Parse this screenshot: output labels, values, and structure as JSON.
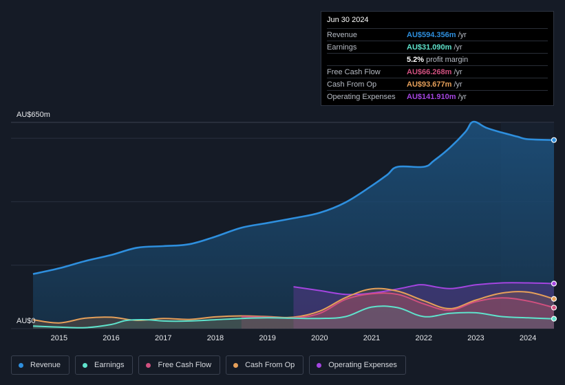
{
  "chart_data": {
    "type": "area",
    "y_axis": {
      "top_label": "AU$650m",
      "bottom_label": "AU$0",
      "ylim": [
        0,
        650
      ]
    },
    "x_ticks": [
      "2015",
      "2016",
      "2017",
      "2018",
      "2019",
      "2020",
      "2021",
      "2022",
      "2023",
      "2024"
    ],
    "series": [
      {
        "name": "Revenue",
        "color": "#2e8fde",
        "points": [
          [
            2014.5,
            172
          ],
          [
            2015.0,
            190
          ],
          [
            2015.5,
            213
          ],
          [
            2016.0,
            232
          ],
          [
            2016.5,
            255
          ],
          [
            2017.0,
            260
          ],
          [
            2017.5,
            266
          ],
          [
            2018.0,
            290
          ],
          [
            2018.5,
            318
          ],
          [
            2019.0,
            333
          ],
          [
            2019.5,
            348
          ],
          [
            2020.0,
            365
          ],
          [
            2020.5,
            398
          ],
          [
            2021.0,
            450
          ],
          [
            2021.3,
            485
          ],
          [
            2021.5,
            510
          ],
          [
            2022.0,
            510
          ],
          [
            2022.2,
            530
          ],
          [
            2022.5,
            570
          ],
          [
            2022.8,
            620
          ],
          [
            2022.95,
            652
          ],
          [
            2023.2,
            633
          ],
          [
            2023.5,
            618
          ],
          [
            2023.8,
            605
          ],
          [
            2024.0,
            597
          ],
          [
            2024.5,
            594.356
          ]
        ]
      },
      {
        "name": "Earnings",
        "color": "#5fe3cc",
        "points": [
          [
            2014.5,
            8
          ],
          [
            2015.0,
            5
          ],
          [
            2015.5,
            3
          ],
          [
            2016.0,
            13
          ],
          [
            2016.3,
            26
          ],
          [
            2016.7,
            28
          ],
          [
            2017.0,
            24
          ],
          [
            2017.5,
            24
          ],
          [
            2018.0,
            28
          ],
          [
            2018.5,
            32
          ],
          [
            2019.0,
            34
          ],
          [
            2019.5,
            33
          ],
          [
            2020.0,
            32
          ],
          [
            2020.5,
            38
          ],
          [
            2021.0,
            68
          ],
          [
            2021.5,
            66
          ],
          [
            2022.0,
            38
          ],
          [
            2022.5,
            48
          ],
          [
            2023.0,
            50
          ],
          [
            2023.5,
            38
          ],
          [
            2024.0,
            34
          ],
          [
            2024.5,
            31.09
          ]
        ]
      },
      {
        "name": "Free Cash Flow",
        "color": "#d1507f",
        "points": [
          [
            2018.5,
            38
          ],
          [
            2019.0,
            36
          ],
          [
            2019.5,
            34
          ],
          [
            2020.0,
            48
          ],
          [
            2020.5,
            92
          ],
          [
            2021.0,
            110
          ],
          [
            2021.5,
            108
          ],
          [
            2022.0,
            78
          ],
          [
            2022.5,
            58
          ],
          [
            2023.0,
            85
          ],
          [
            2023.5,
            97
          ],
          [
            2024.0,
            87
          ],
          [
            2024.5,
            66.268
          ]
        ]
      },
      {
        "name": "Cash From Op",
        "color": "#e6a05a",
        "points": [
          [
            2014.5,
            28
          ],
          [
            2015.0,
            18
          ],
          [
            2015.5,
            33
          ],
          [
            2016.0,
            36
          ],
          [
            2016.5,
            26
          ],
          [
            2017.0,
            32
          ],
          [
            2017.5,
            29
          ],
          [
            2018.0,
            37
          ],
          [
            2018.5,
            40
          ],
          [
            2019.0,
            38
          ],
          [
            2019.5,
            36
          ],
          [
            2020.0,
            55
          ],
          [
            2020.5,
            98
          ],
          [
            2021.0,
            125
          ],
          [
            2021.5,
            118
          ],
          [
            2022.0,
            88
          ],
          [
            2022.5,
            63
          ],
          [
            2023.0,
            90
          ],
          [
            2023.5,
            112
          ],
          [
            2024.0,
            115
          ],
          [
            2024.5,
            93.677
          ]
        ]
      },
      {
        "name": "Operating Expenses",
        "color": "#a445e0",
        "points": [
          [
            2019.5,
            132
          ],
          [
            2020.0,
            120
          ],
          [
            2020.5,
            108
          ],
          [
            2021.0,
            112
          ],
          [
            2021.5,
            125
          ],
          [
            2021.8,
            135
          ],
          [
            2022.0,
            138
          ],
          [
            2022.5,
            126
          ],
          [
            2023.0,
            138
          ],
          [
            2023.5,
            144
          ],
          [
            2024.0,
            144
          ],
          [
            2024.5,
            141.91
          ]
        ]
      }
    ]
  },
  "tooltip": {
    "date": "Jun 30 2024",
    "rows": [
      {
        "label": "Revenue",
        "value": "AU$594.356m",
        "unit": "/yr",
        "color": "#2e8fde"
      },
      {
        "label": "Earnings",
        "value": "AU$31.090m",
        "unit": "/yr",
        "color": "#5fe3cc"
      },
      {
        "label": "",
        "value": "5.2%",
        "unit": "profit margin",
        "color": "#ffffff"
      },
      {
        "label": "Free Cash Flow",
        "value": "AU$66.268m",
        "unit": "/yr",
        "color": "#d1507f"
      },
      {
        "label": "Cash From Op",
        "value": "AU$93.677m",
        "unit": "/yr",
        "color": "#e6a05a"
      },
      {
        "label": "Operating Expenses",
        "value": "AU$141.910m",
        "unit": "/yr",
        "color": "#a445e0"
      }
    ]
  },
  "legend": [
    {
      "label": "Revenue",
      "color": "#2e8fde"
    },
    {
      "label": "Earnings",
      "color": "#5fe3cc"
    },
    {
      "label": "Free Cash Flow",
      "color": "#d1507f"
    },
    {
      "label": "Cash From Op",
      "color": "#e6a05a"
    },
    {
      "label": "Operating Expenses",
      "color": "#a445e0"
    }
  ]
}
